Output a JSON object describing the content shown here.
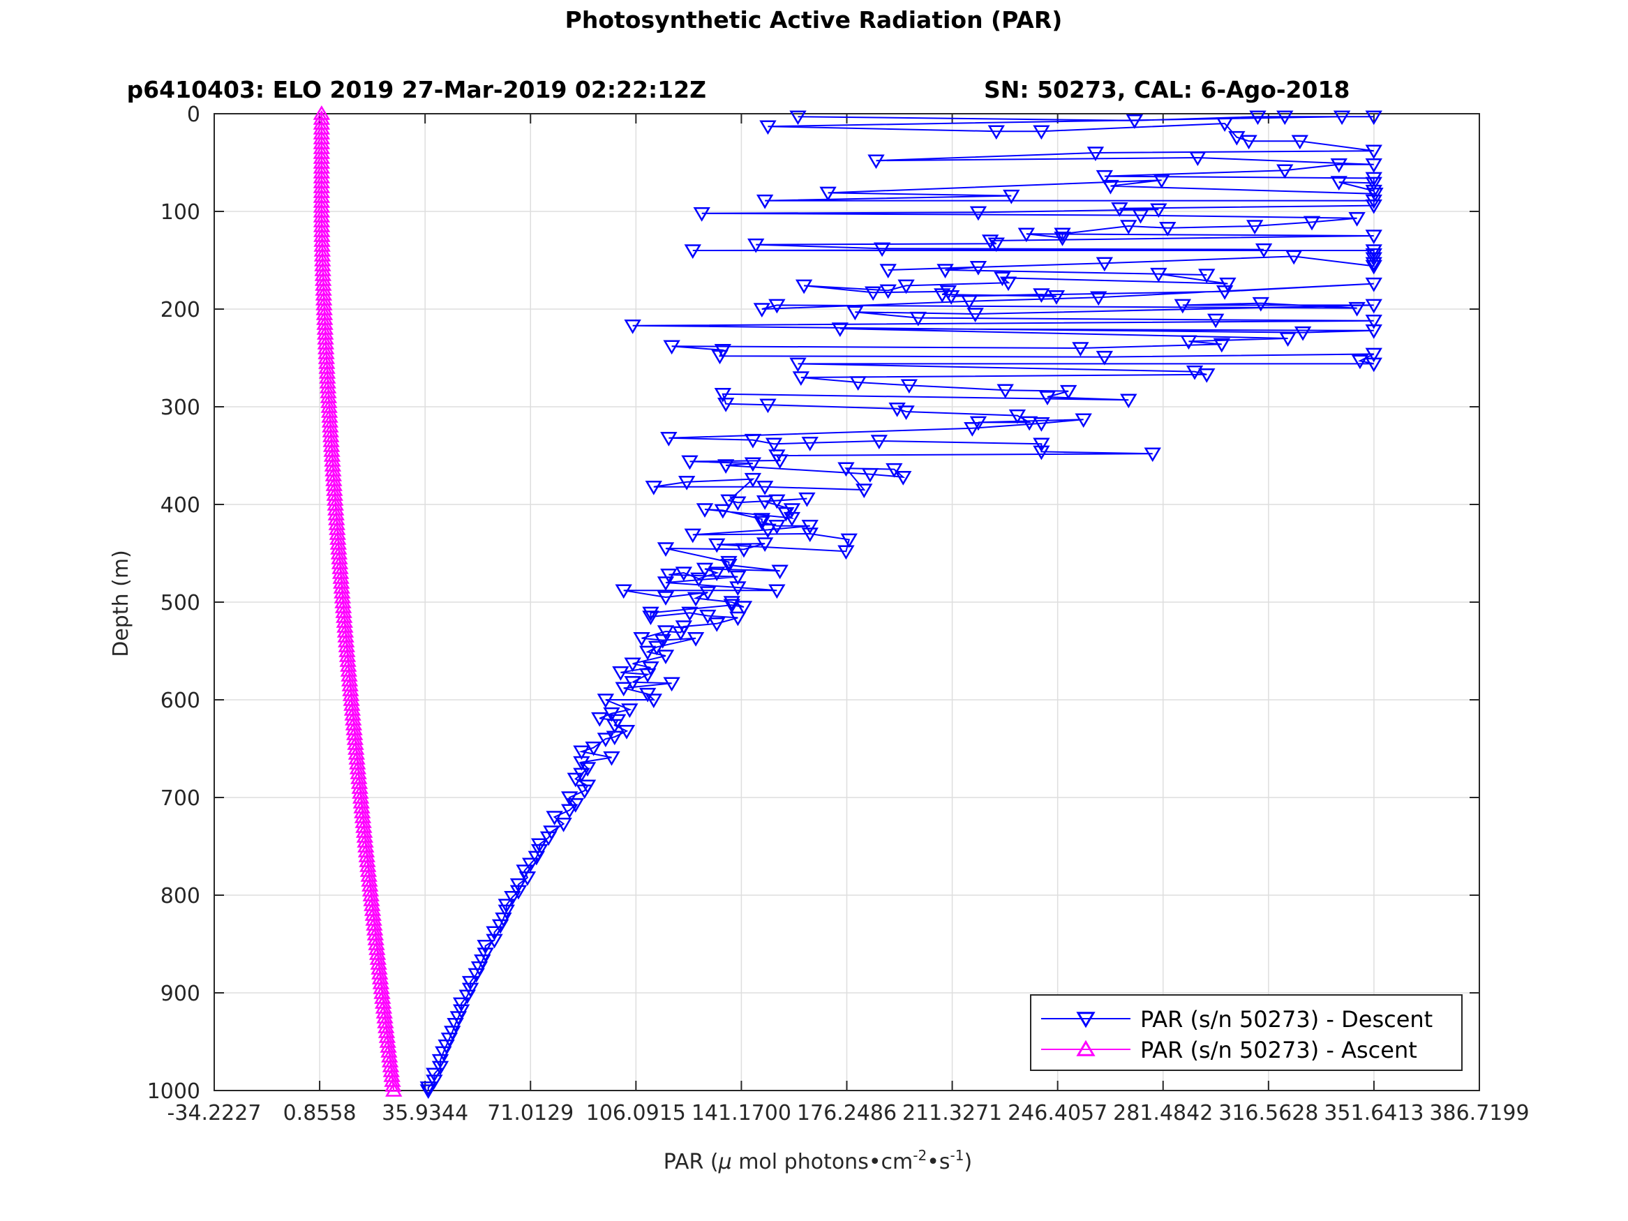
{
  "chart_data": {
    "type": "scatter",
    "title": "Photosynthetic Active Radiation (PAR)",
    "subtitle_left": "p6410403: ELO 2019 27-Mar-2019 02:22:12Z",
    "subtitle_right": "SN: 50273, CAL: 6-Ago-2018",
    "xlabel_prefix": "PAR (",
    "xlabel_mu": "μ",
    "xlabel_mid": " mol photons•cm",
    "xlabel_sup1": "-2",
    "xlabel_mid2": "•s",
    "xlabel_sup2": "-1",
    "xlabel_suffix": ")",
    "ylabel": "Depth (m)",
    "xlim": [
      -34.2227,
      386.7199
    ],
    "ylim": [
      1000,
      0
    ],
    "y_reversed": true,
    "grid": true,
    "legend_position": "bottom-right",
    "xticks": [
      "-34.2227",
      "0.8558",
      "35.9344",
      "71.0129",
      "106.0915",
      "141.1700",
      "176.2486",
      "211.3271",
      "246.4057",
      "281.4842",
      "316.5628",
      "351.6413",
      "386.7199"
    ],
    "yticks": [
      "0",
      "100",
      "200",
      "300",
      "400",
      "500",
      "600",
      "700",
      "800",
      "900",
      "1000"
    ],
    "series": [
      {
        "name": "PAR (s/n 50273) - Descent",
        "color": "#0000ff",
        "marker": "triangle-down",
        "points": [
          [
            160,
            3
          ],
          [
            272,
            7
          ],
          [
            313,
            3
          ],
          [
            322,
            3
          ],
          [
            351.6,
            3
          ],
          [
            341,
            3
          ],
          [
            150,
            13
          ],
          [
            226,
            18
          ],
          [
            241,
            18
          ],
          [
            302,
            10
          ],
          [
            306,
            24
          ],
          [
            310,
            28
          ],
          [
            327,
            28
          ],
          [
            351.6,
            38
          ],
          [
            259,
            40
          ],
          [
            186,
            48
          ],
          [
            293,
            45
          ],
          [
            351.6,
            52
          ],
          [
            340,
            52
          ],
          [
            322,
            58
          ],
          [
            262,
            64
          ],
          [
            351.6,
            66
          ],
          [
            351.6,
            71
          ],
          [
            340,
            70
          ],
          [
            351.6,
            79
          ],
          [
            352,
            82
          ],
          [
            264,
            74
          ],
          [
            281,
            68
          ],
          [
            170,
            81
          ],
          [
            231,
            84
          ],
          [
            149,
            89
          ],
          [
            351.6,
            89
          ],
          [
            351.6,
            94
          ],
          [
            267,
            97
          ],
          [
            280,
            98
          ],
          [
            220,
            101
          ],
          [
            128,
            102
          ],
          [
            274,
            104
          ],
          [
            346,
            107
          ],
          [
            331,
            111
          ],
          [
            312,
            115
          ],
          [
            283,
            117
          ],
          [
            270,
            115
          ],
          [
            248,
            123
          ],
          [
            248,
            127
          ],
          [
            236,
            123
          ],
          [
            351.6,
            125
          ],
          [
            224,
            130
          ],
          [
            226,
            133
          ],
          [
            146,
            134
          ],
          [
            188,
            138
          ],
          [
            315,
            139
          ],
          [
            125,
            140
          ],
          [
            351.6,
            140
          ],
          [
            351.6,
            144
          ],
          [
            351.6,
            148
          ],
          [
            351.6,
            153
          ],
          [
            351.6,
            156
          ],
          [
            325,
            146
          ],
          [
            262,
            153
          ],
          [
            190,
            160
          ],
          [
            220,
            157
          ],
          [
            209,
            160
          ],
          [
            296,
            165
          ],
          [
            280,
            164
          ],
          [
            303,
            174
          ],
          [
            228,
            168
          ],
          [
            230,
            173
          ],
          [
            196,
            176
          ],
          [
            190,
            181
          ],
          [
            162,
            176
          ],
          [
            185,
            183
          ],
          [
            210,
            182
          ],
          [
            208,
            185
          ],
          [
            246,
            187
          ],
          [
            241,
            185
          ],
          [
            211,
            187
          ],
          [
            302,
            182
          ],
          [
            351.6,
            174
          ],
          [
            260,
            188
          ],
          [
            217,
            192
          ],
          [
            148,
            200
          ],
          [
            153,
            196
          ],
          [
            346,
            199
          ],
          [
            314,
            194
          ],
          [
            288,
            196
          ],
          [
            351.6,
            196
          ],
          [
            219,
            205
          ],
          [
            179,
            203
          ],
          [
            200,
            209
          ],
          [
            299,
            211
          ],
          [
            351.6,
            212
          ],
          [
            105,
            217
          ],
          [
            328,
            224
          ],
          [
            351.6,
            222
          ],
          [
            174,
            220
          ],
          [
            323,
            230
          ],
          [
            290,
            233
          ],
          [
            301,
            236
          ],
          [
            254,
            240
          ],
          [
            118,
            238
          ],
          [
            135,
            242
          ],
          [
            134,
            248
          ],
          [
            262,
            249
          ],
          [
            351.6,
            246
          ],
          [
            347,
            253
          ],
          [
            351.6,
            256
          ],
          [
            160,
            256
          ],
          [
            292,
            264
          ],
          [
            296,
            267
          ],
          [
            161,
            270
          ],
          [
            180,
            275
          ],
          [
            197,
            278
          ],
          [
            229,
            283
          ],
          [
            250,
            284
          ],
          [
            243,
            290
          ],
          [
            270,
            293
          ],
          [
            135,
            287
          ],
          [
            136,
            297
          ],
          [
            150,
            298
          ],
          [
            193,
            302
          ],
          [
            196,
            305
          ],
          [
            233,
            309
          ],
          [
            237,
            316
          ],
          [
            220,
            316
          ],
          [
            255,
            313
          ],
          [
            241,
            317
          ],
          [
            218,
            322
          ],
          [
            117,
            332
          ],
          [
            145,
            334
          ],
          [
            152,
            338
          ],
          [
            164,
            337
          ],
          [
            187,
            335
          ],
          [
            241,
            338
          ],
          [
            241,
            346
          ],
          [
            278,
            348
          ],
          [
            153,
            350
          ],
          [
            154,
            355
          ],
          [
            124,
            356
          ],
          [
            145,
            358
          ],
          [
            136,
            360
          ],
          [
            184,
            369
          ],
          [
            195,
            372
          ],
          [
            192,
            364
          ],
          [
            176,
            363
          ],
          [
            182,
            385
          ],
          [
            149,
            382
          ],
          [
            112,
            382
          ],
          [
            123,
            377
          ],
          [
            145,
            374
          ],
          [
            137,
            396
          ],
          [
            140,
            398
          ],
          [
            153,
            396
          ],
          [
            163,
            394
          ],
          [
            149,
            397
          ],
          [
            158,
            405
          ],
          [
            156,
            409
          ],
          [
            158,
            414
          ],
          [
            129,
            405
          ],
          [
            135,
            406
          ],
          [
            148,
            415
          ],
          [
            148,
            418
          ],
          [
            153,
            422
          ],
          [
            164,
            422
          ],
          [
            150,
            426
          ],
          [
            125,
            431
          ],
          [
            164,
            430
          ],
          [
            177,
            436
          ],
          [
            176,
            448
          ],
          [
            133,
            441
          ],
          [
            149,
            440
          ],
          [
            142,
            446
          ],
          [
            116,
            445
          ],
          [
            137,
            459
          ],
          [
            137,
            462
          ],
          [
            154,
            468
          ],
          [
            129,
            466
          ],
          [
            133,
            470
          ],
          [
            127,
            476
          ],
          [
            122,
            470
          ],
          [
            117,
            472
          ],
          [
            140,
            474
          ],
          [
            116,
            480
          ],
          [
            140,
            485
          ],
          [
            153,
            488
          ],
          [
            102,
            488
          ],
          [
            116,
            495
          ],
          [
            130,
            490
          ],
          [
            126,
            496
          ],
          [
            138,
            500
          ],
          [
            142,
            505
          ],
          [
            138,
            503
          ],
          [
            111,
            511
          ],
          [
            111,
            515
          ],
          [
            124,
            511
          ],
          [
            130,
            514
          ],
          [
            140,
            516
          ],
          [
            133,
            522
          ],
          [
            122,
            525
          ],
          [
            121,
            531
          ],
          [
            116,
            530
          ],
          [
            108,
            537
          ],
          [
            115,
            539
          ],
          [
            126,
            537
          ],
          [
            113,
            546
          ],
          [
            110,
            551
          ],
          [
            116,
            555
          ],
          [
            105,
            563
          ],
          [
            111,
            567
          ],
          [
            101,
            572
          ],
          [
            110,
            574
          ],
          [
            105,
            582
          ],
          [
            118,
            583
          ],
          [
            102,
            588
          ],
          [
            110,
            594
          ],
          [
            112,
            600
          ],
          [
            96,
            600
          ],
          [
            104,
            610
          ],
          [
            98,
            614
          ],
          [
            94,
            619
          ],
          [
            100,
            621
          ],
          [
            99,
            626
          ],
          [
            103,
            632
          ],
          [
            99,
            638
          ],
          [
            96,
            640
          ],
          [
            92,
            649
          ],
          [
            88,
            653
          ],
          [
            98,
            659
          ],
          [
            88,
            664
          ],
          [
            90,
            670
          ],
          [
            88,
            676
          ],
          [
            86,
            681
          ],
          [
            90,
            688
          ],
          [
            89,
            693
          ],
          [
            84,
            700
          ],
          [
            86,
            707
          ],
          [
            84,
            713
          ],
          [
            79,
            720
          ],
          [
            82,
            727
          ],
          [
            78,
            735
          ],
          [
            77,
            741
          ],
          [
            74,
            748
          ],
          [
            74,
            754
          ],
          [
            73,
            761
          ],
          [
            71,
            768
          ],
          [
            69,
            775
          ],
          [
            70,
            782
          ],
          [
            67,
            789
          ],
          [
            67,
            796
          ],
          [
            65,
            802
          ],
          [
            63,
            810
          ],
          [
            63,
            816
          ],
          [
            62,
            824
          ],
          [
            61,
            831
          ],
          [
            59,
            838
          ],
          [
            59,
            846
          ],
          [
            56,
            852
          ],
          [
            56,
            860
          ],
          [
            55,
            867
          ],
          [
            54,
            874
          ],
          [
            53,
            881
          ],
          [
            51,
            889
          ],
          [
            51,
            896
          ],
          [
            50,
            903
          ],
          [
            48,
            911
          ],
          [
            48,
            918
          ],
          [
            47,
            925
          ],
          [
            46,
            932
          ],
          [
            45,
            940
          ],
          [
            44,
            947
          ],
          [
            43,
            954
          ],
          [
            42,
            961
          ],
          [
            41,
            969
          ],
          [
            41,
            976
          ],
          [
            39,
            983
          ],
          [
            39,
            990
          ],
          [
            37,
            997
          ],
          [
            37,
            1000
          ]
        ]
      },
      {
        "name": "PAR (s/n 50273) - Ascent",
        "color": "#ff00ff",
        "marker": "triangle-up",
        "points": []
      }
    ]
  }
}
